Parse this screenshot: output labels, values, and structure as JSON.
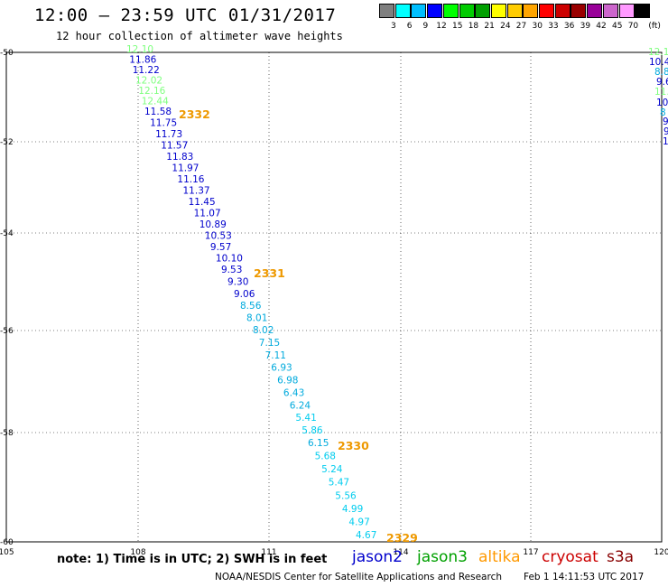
{
  "header": {
    "title": "12:00 – 23:59 UTC 01/31/2017",
    "subtitle": "12 hour collection of altimeter wave heights"
  },
  "scale": {
    "colors": [
      "#7f7f7f",
      "#00ffff",
      "#00bfff",
      "#0000ff",
      "#00ff00",
      "#00cc00",
      "#00a000",
      "#ffff00",
      "#ffcc00",
      "#ffa500",
      "#ff0000",
      "#cc0000",
      "#990000",
      "#990099",
      "#cc66cc",
      "#ff99ff",
      "#000000"
    ],
    "labels": [
      "3",
      "6",
      "9",
      "12",
      "15",
      "18",
      "21",
      "24",
      "27",
      "30",
      "33",
      "36",
      "39",
      "42",
      "45",
      "70",
      "(ft)"
    ]
  },
  "map": {
    "lat_ticks": [
      "-50",
      "-52",
      "-54",
      "-56",
      "-58",
      "-60"
    ],
    "lon_ticks": [
      "105",
      "108",
      "111",
      "114",
      "117",
      "120"
    ]
  },
  "track_main": {
    "readings": [
      {
        "v": "12.10",
        "c": "#7fff7f"
      },
      {
        "v": "11.86",
        "c": "#0000cc"
      },
      {
        "v": "11.22",
        "c": "#0000cc"
      },
      {
        "v": "12.02",
        "c": "#7fff7f"
      },
      {
        "v": "12.16",
        "c": "#7fff7f"
      },
      {
        "v": "12.44",
        "c": "#7fff7f"
      },
      {
        "v": "11.58",
        "c": "#0000cc"
      },
      {
        "v": "11.75",
        "c": "#0000cc"
      },
      {
        "v": "11.73",
        "c": "#0000cc"
      },
      {
        "v": "11.57",
        "c": "#0000cc"
      },
      {
        "v": "11.83",
        "c": "#0000cc"
      },
      {
        "v": "11.97",
        "c": "#0000cc"
      },
      {
        "v": "11.16",
        "c": "#0000cc"
      },
      {
        "v": "11.37",
        "c": "#0000cc"
      },
      {
        "v": "11.45",
        "c": "#0000cc"
      },
      {
        "v": "11.07",
        "c": "#0000cc"
      },
      {
        "v": "10.89",
        "c": "#0000cc"
      },
      {
        "v": "10.53",
        "c": "#0000cc"
      },
      {
        "v": "9.57",
        "c": "#0000cc"
      },
      {
        "v": "10.10",
        "c": "#0000cc"
      },
      {
        "v": "9.53",
        "c": "#0000cc"
      },
      {
        "v": "9.30",
        "c": "#0000cc"
      },
      {
        "v": "9.06",
        "c": "#0000cc"
      },
      {
        "v": "8.56",
        "c": "#00aadd"
      },
      {
        "v": "8.01",
        "c": "#00aadd"
      },
      {
        "v": "8.02",
        "c": "#00aadd"
      },
      {
        "v": "7.15",
        "c": "#00aadd"
      },
      {
        "v": "7.11",
        "c": "#00aadd"
      },
      {
        "v": "6.93",
        "c": "#00aadd"
      },
      {
        "v": "6.98",
        "c": "#00aadd"
      },
      {
        "v": "6.43",
        "c": "#00aadd"
      },
      {
        "v": "6.24",
        "c": "#00aadd"
      },
      {
        "v": "5.41",
        "c": "#00ccee"
      },
      {
        "v": "5.86",
        "c": "#00ccee"
      },
      {
        "v": "6.15",
        "c": "#00aadd"
      },
      {
        "v": "5.68",
        "c": "#00ccee"
      },
      {
        "v": "5.24",
        "c": "#00ccee"
      },
      {
        "v": "5.47",
        "c": "#00ccee"
      },
      {
        "v": "5.56",
        "c": "#00ccee"
      },
      {
        "v": "4.99",
        "c": "#00ccee"
      },
      {
        "v": "4.97",
        "c": "#00ccee"
      },
      {
        "v": "4.67",
        "c": "#00ccee"
      }
    ],
    "times": [
      "2332",
      "2331",
      "2330",
      "2329"
    ],
    "time_color": "#ee9900"
  },
  "track_edge": {
    "readings": [
      {
        "v": "12.1",
        "c": "#7fff7f"
      },
      {
        "v": "10.4",
        "c": "#0000cc"
      },
      {
        "v": "8.8",
        "c": "#00aadd"
      },
      {
        "v": "9.6",
        "c": "#0000cc"
      },
      {
        "v": "11.",
        "c": "#7fff7f"
      },
      {
        "v": "10",
        "c": "#0000cc"
      },
      {
        "v": "8",
        "c": "#00aadd"
      },
      {
        "v": "9",
        "c": "#0000cc"
      },
      {
        "v": "9",
        "c": "#0000cc"
      },
      {
        "v": "1",
        "c": "#0000cc"
      }
    ]
  },
  "notes": {
    "text": "note: 1) Time is in UTC; 2) SWH is in feet"
  },
  "satellites": [
    {
      "name": "jason2",
      "color": "#0000cc"
    },
    {
      "name": "jason3",
      "color": "#00a000"
    },
    {
      "name": "altika",
      "color": "#ff9900"
    },
    {
      "name": "cryosat",
      "color": "#cc0000"
    },
    {
      "name": "s3a",
      "color": "#880000"
    }
  ],
  "footer": {
    "credit": "NOAA/NESDIS Center for Satellite Applications and Research",
    "timestamp": "Feb  1 14:11:53 UTC 2017"
  }
}
